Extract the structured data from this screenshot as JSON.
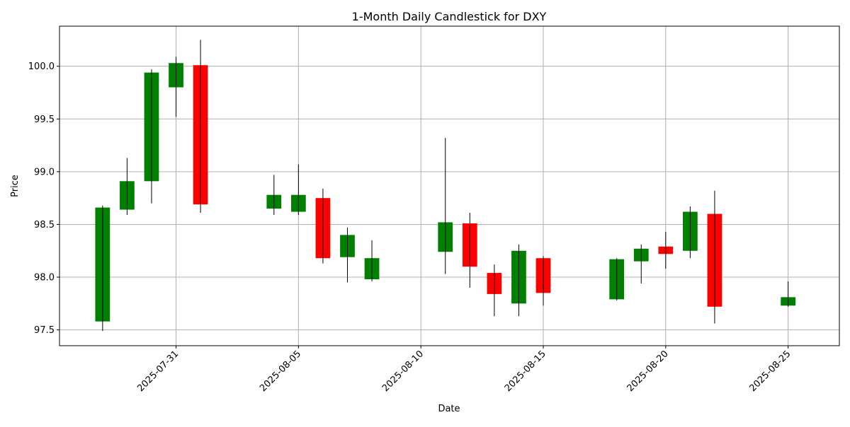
{
  "chart_data": {
    "type": "candlestick",
    "title": "1-Month Daily Candlestick for DXY",
    "xlabel": "Date",
    "ylabel": "Price",
    "ylim": [
      97.35,
      100.38
    ],
    "xlim": [
      "2025-07-26T05:45",
      "2025-08-27T02:15"
    ],
    "yticks": [
      97.5,
      98.0,
      98.5,
      99.0,
      99.5,
      100.0
    ],
    "ytick_labels": [
      "97.5",
      "98.0",
      "98.5",
      "99.0",
      "99.5",
      "100.0"
    ],
    "xticks": [
      "2025-07-31",
      "2025-08-05",
      "2025-08-10",
      "2025-08-15",
      "2025-08-20",
      "2025-08-25"
    ],
    "grid": true,
    "colors": {
      "up": "#008000",
      "down": "#ff0000",
      "wick": "#000000",
      "grid": "#b0b0b0"
    },
    "candles": [
      {
        "date": "2025-07-28",
        "open": 97.58,
        "high": 98.68,
        "low": 97.49,
        "close": 98.66
      },
      {
        "date": "2025-07-29",
        "open": 98.64,
        "high": 99.13,
        "low": 98.59,
        "close": 98.91
      },
      {
        "date": "2025-07-30",
        "open": 98.91,
        "high": 99.97,
        "low": 98.7,
        "close": 99.94
      },
      {
        "date": "2025-07-31",
        "open": 99.8,
        "high": 100.09,
        "low": 99.52,
        "close": 100.03
      },
      {
        "date": "2025-08-01",
        "open": 100.01,
        "high": 100.25,
        "low": 98.61,
        "close": 98.69
      },
      {
        "date": "2025-08-04",
        "open": 98.65,
        "high": 98.97,
        "low": 98.59,
        "close": 98.78
      },
      {
        "date": "2025-08-05",
        "open": 98.62,
        "high": 99.07,
        "low": 98.59,
        "close": 98.78
      },
      {
        "date": "2025-08-06",
        "open": 98.75,
        "high": 98.84,
        "low": 98.13,
        "close": 98.18
      },
      {
        "date": "2025-08-07",
        "open": 98.19,
        "high": 98.47,
        "low": 97.95,
        "close": 98.4
      },
      {
        "date": "2025-08-08",
        "open": 97.98,
        "high": 98.35,
        "low": 97.96,
        "close": 98.18
      },
      {
        "date": "2025-08-11",
        "open": 98.24,
        "high": 99.32,
        "low": 98.03,
        "close": 98.52
      },
      {
        "date": "2025-08-12",
        "open": 98.51,
        "high": 98.61,
        "low": 97.9,
        "close": 98.1
      },
      {
        "date": "2025-08-13",
        "open": 98.04,
        "high": 98.12,
        "low": 97.63,
        "close": 97.84
      },
      {
        "date": "2025-08-14",
        "open": 97.75,
        "high": 98.31,
        "low": 97.63,
        "close": 98.25
      },
      {
        "date": "2025-08-15",
        "open": 98.18,
        "high": 98.2,
        "low": 97.73,
        "close": 97.85
      },
      {
        "date": "2025-08-18",
        "open": 97.79,
        "high": 98.18,
        "low": 97.78,
        "close": 98.17
      },
      {
        "date": "2025-08-19",
        "open": 98.15,
        "high": 98.31,
        "low": 97.94,
        "close": 98.27
      },
      {
        "date": "2025-08-20",
        "open": 98.29,
        "high": 98.43,
        "low": 98.08,
        "close": 98.22
      },
      {
        "date": "2025-08-21",
        "open": 98.25,
        "high": 98.67,
        "low": 98.18,
        "close": 98.62
      },
      {
        "date": "2025-08-22",
        "open": 98.6,
        "high": 98.82,
        "low": 97.56,
        "close": 97.72
      },
      {
        "date": "2025-08-25",
        "open": 97.73,
        "high": 97.96,
        "low": 97.72,
        "close": 97.81
      }
    ]
  }
}
